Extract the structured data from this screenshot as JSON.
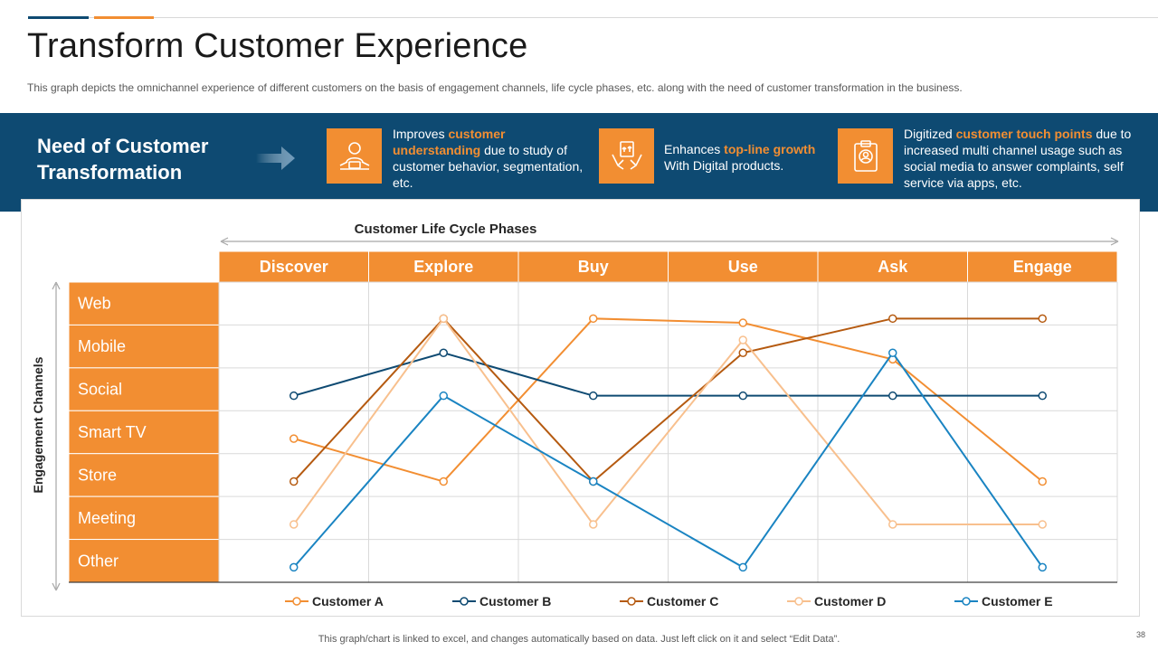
{
  "slide": {
    "title": "Transform Customer Experience",
    "subtitle": "This graph depicts the omnichannel experience of different customers on the basis of engagement channels, life cycle phases, etc. along with the need of customer transformation in the business.",
    "footer_note": "This graph/chart is linked to excel, and changes automatically based on data. Just left click on it and select “Edit Data”.",
    "page_number": "38",
    "colors": {
      "navy": "#0e4a72",
      "orange": "#f28e32",
      "gridline": "#d9d9d9"
    }
  },
  "banner": {
    "title": "Need of Customer Transformation",
    "features": [
      {
        "icon": "customer-support-icon",
        "pre": "Improves ",
        "highlight": "customer understanding",
        "post": " due to study of customer behavior, segmentation, etc."
      },
      {
        "icon": "growth-hands-icon",
        "pre": "Enhances ",
        "highlight": "top-line growth",
        "post": " With Digital products."
      },
      {
        "icon": "clipboard-profile-icon",
        "pre": "Digitized ",
        "highlight": "customer touch points",
        "post": " due to increased multi channel usage such as social media to answer complaints, self service via apps, etc."
      }
    ]
  },
  "chart_data": {
    "type": "line",
    "title": "Customer Life Cycle Phases",
    "xlabel": "Customer Life Cycle Phases",
    "ylabel": "Engagement Channels",
    "categories": [
      "Discover",
      "Explore",
      "Buy",
      "Use",
      "Ask",
      "Engage"
    ],
    "y_categories": [
      "Web",
      "Mobile",
      "Social",
      "Smart TV",
      "Store",
      "Meeting",
      "Other"
    ],
    "ylim": [
      0,
      7
    ],
    "grid": true,
    "legend_position": "bottom",
    "series": [
      {
        "name": "Customer A",
        "color": "#f28e32",
        "values": [
          3.35,
          2.35,
          6.15,
          6.05,
          5.2,
          2.35
        ]
      },
      {
        "name": "Customer B",
        "color": "#0e4a72",
        "values": [
          4.35,
          5.35,
          4.35,
          4.35,
          4.35,
          4.35
        ]
      },
      {
        "name": "Customer C",
        "color": "#b55a10",
        "values": [
          2.35,
          6.15,
          2.35,
          5.35,
          6.15,
          6.15
        ]
      },
      {
        "name": "Customer D",
        "color": "#f8c08e",
        "values": [
          1.35,
          6.15,
          1.35,
          5.65,
          1.35,
          1.35
        ]
      },
      {
        "name": "Customer E",
        "color": "#1a84c2",
        "values": [
          0.35,
          4.35,
          2.35,
          0.35,
          5.35,
          0.35
        ]
      }
    ]
  }
}
